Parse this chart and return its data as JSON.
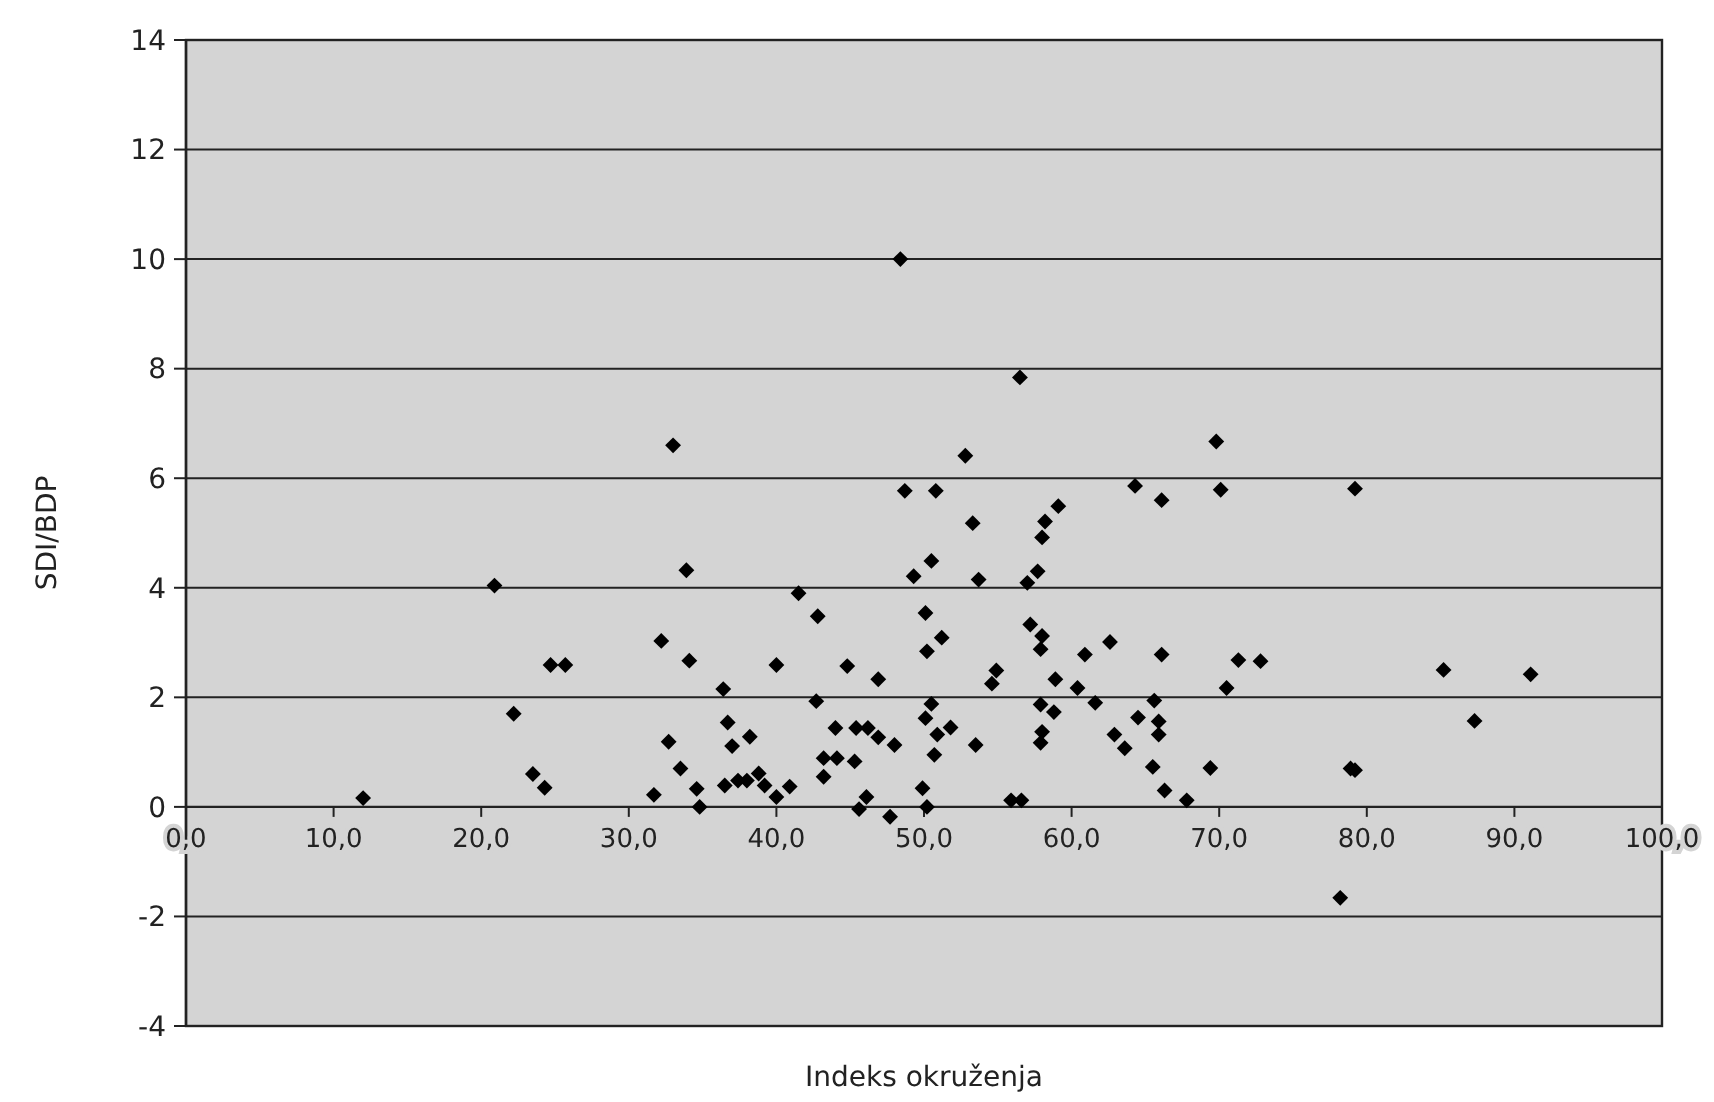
{
  "chart_data": {
    "type": "scatter",
    "xlabel": "Indeks okruženja",
    "ylabel": "SDI/BDP",
    "xlim": [
      0,
      100
    ],
    "ylim": [
      -4,
      14
    ],
    "xticks": [
      {
        "value": 0,
        "label": "0,0"
      },
      {
        "value": 10,
        "label": "10,0"
      },
      {
        "value": 20,
        "label": "20,0"
      },
      {
        "value": 30,
        "label": "30,0"
      },
      {
        "value": 40,
        "label": "40,0"
      },
      {
        "value": 50,
        "label": "50,0"
      },
      {
        "value": 60,
        "label": "60,0"
      },
      {
        "value": 70,
        "label": "70,0"
      },
      {
        "value": 80,
        "label": "80,0"
      },
      {
        "value": 90,
        "label": "90,0"
      },
      {
        "value": 100,
        "label": "100,0"
      }
    ],
    "yticks": [
      -4,
      -2,
      0,
      2,
      4,
      6,
      8,
      10,
      12,
      14
    ],
    "grid": "y",
    "marker": "diamond",
    "series": [
      {
        "color": "#000000",
        "x": [
          12.0,
          20.9,
          22.2,
          23.5,
          24.3,
          24.7,
          25.7,
          33.0,
          32.2,
          31.7,
          32.7,
          33.5,
          33.9,
          34.1,
          34.6,
          34.8,
          36.4,
          36.7,
          37.0,
          38.2,
          36.5,
          37.4,
          38.0,
          38.8,
          39.2,
          40.0,
          40.0,
          40.9,
          41.5,
          42.8,
          42.7,
          44.0,
          43.2,
          43.2,
          44.1,
          44.8,
          45.3,
          45.4,
          46.2,
          45.6,
          46.1,
          46.9,
          46.9,
          48.0,
          47.7,
          48.7,
          50.8,
          49.3,
          50.5,
          50.1,
          51.2,
          50.2,
          50.5,
          50.1,
          50.9,
          51.8,
          50.7,
          49.9,
          50.2,
          52.8,
          53.3,
          53.7,
          53.5,
          54.6,
          54.9,
          55.9,
          56.6,
          56.5,
          57.0,
          57.2,
          57.7,
          58.0,
          58.2,
          59.1,
          58.0,
          57.9,
          58.9,
          57.9,
          58.8,
          58.0,
          57.9,
          60.9,
          60.4,
          61.6,
          62.6,
          62.9,
          63.6,
          64.3,
          66.1,
          64.5,
          65.6,
          65.9,
          65.9,
          66.1,
          65.5,
          66.3,
          67.8,
          69.8,
          70.1,
          69.4,
          70.5,
          71.3,
          72.8,
          79.2,
          78.9,
          79.2,
          85.2,
          91.1,
          87.3,
          78.2,
          48.4
        ],
        "values": [
          0.16,
          4.04,
          1.7,
          0.6,
          0.35,
          2.59,
          2.59,
          6.6,
          3.03,
          0.22,
          1.19,
          0.7,
          4.32,
          2.67,
          0.33,
          0.0,
          2.15,
          1.54,
          1.11,
          1.28,
          0.39,
          0.48,
          0.48,
          0.61,
          0.39,
          2.59,
          0.18,
          0.37,
          3.9,
          3.48,
          1.93,
          1.44,
          0.89,
          0.55,
          0.89,
          2.57,
          0.83,
          1.44,
          1.44,
          -0.04,
          0.18,
          2.33,
          1.27,
          1.13,
          -0.18,
          5.77,
          5.77,
          4.21,
          4.49,
          3.54,
          3.09,
          2.84,
          1.88,
          1.62,
          1.32,
          1.45,
          0.95,
          0.34,
          0.0,
          6.41,
          5.18,
          4.15,
          1.13,
          2.25,
          2.49,
          0.12,
          0.12,
          7.84,
          4.09,
          3.33,
          4.3,
          4.92,
          5.21,
          5.49,
          3.12,
          2.88,
          2.33,
          1.87,
          1.73,
          1.37,
          1.17,
          2.78,
          2.17,
          1.9,
          3.01,
          1.32,
          1.07,
          5.86,
          5.6,
          1.63,
          1.94,
          1.56,
          1.32,
          2.78,
          0.73,
          0.3,
          0.12,
          6.67,
          5.79,
          0.71,
          2.17,
          2.68,
          2.66,
          5.81,
          0.7,
          0.67,
          2.5,
          2.42,
          1.57,
          -1.66,
          10.0
        ]
      }
    ]
  }
}
